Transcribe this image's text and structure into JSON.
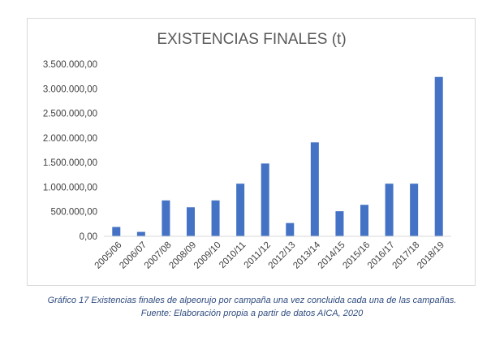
{
  "chart_data": {
    "type": "bar",
    "title": "EXISTENCIAS FINALES (t)",
    "categories": [
      "2005/06",
      "2006/07",
      "2007/08",
      "2008/09",
      "2009/10",
      "2010/11",
      "2011/12",
      "2012/13",
      "2013/14",
      "2014/15",
      "2015/16",
      "2016/17",
      "2017/18",
      "2018/19"
    ],
    "values": [
      190000,
      90000,
      730000,
      590000,
      730000,
      1070000,
      1480000,
      270000,
      1910000,
      510000,
      640000,
      1070000,
      1070000,
      3240000
    ],
    "ylim": [
      0,
      3500000
    ],
    "yticks": [
      0,
      500000,
      1000000,
      1500000,
      2000000,
      2500000,
      3000000,
      3500000
    ],
    "ytick_labels": [
      "0,00",
      "500.000,00",
      "1.000.000,00",
      "1.500.000,00",
      "2.000.000,00",
      "2.500.000,00",
      "3.000.000,00",
      "3.500.000,00"
    ],
    "bar_color": "#4472c4",
    "grid": false,
    "legend": "none"
  },
  "caption": {
    "line1": "Gráfico 17 Existencias finales de alpeorujo por campaña una vez concluida cada una de las campañas.",
    "line2": "Fuente: Elaboración propia a partir de datos AICA, 2020"
  },
  "colors": {
    "caption": "#2f4c7f",
    "axis": "#d9d9d9",
    "text": "#404040"
  }
}
